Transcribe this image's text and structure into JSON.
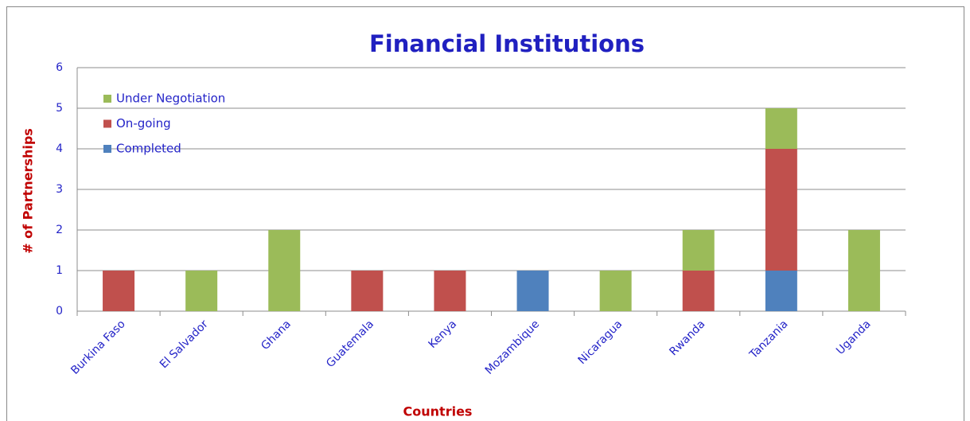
{
  "chart_data": {
    "type": "stacked_bar",
    "title": "Financial Institutions",
    "x_label": "Countries",
    "y_label": "# of Partnerships",
    "categories": [
      "Burkina Faso",
      "El Salvador",
      "Ghana",
      "Guatemala",
      "Kenya",
      "Mozambique",
      "Nicaragua",
      "Rwanda",
      "Tanzania",
      "Uganda"
    ],
    "series": [
      {
        "name": "Completed",
        "color": "#4f81bd",
        "values": [
          0,
          0,
          0,
          0,
          0,
          1,
          0,
          0,
          1,
          0
        ]
      },
      {
        "name": "On-going",
        "color": "#c0504d",
        "values": [
          1,
          0,
          0,
          1,
          1,
          0,
          0,
          1,
          3,
          0
        ]
      },
      {
        "name": "Under Negotiation",
        "color": "#9bbb59",
        "values": [
          0,
          1,
          2,
          0,
          0,
          0,
          1,
          1,
          1,
          2
        ]
      }
    ],
    "ylim": [
      0,
      6
    ],
    "yticks": [
      0,
      1,
      2,
      3,
      4,
      5,
      6
    ],
    "grid": true,
    "legend": "upper left"
  }
}
